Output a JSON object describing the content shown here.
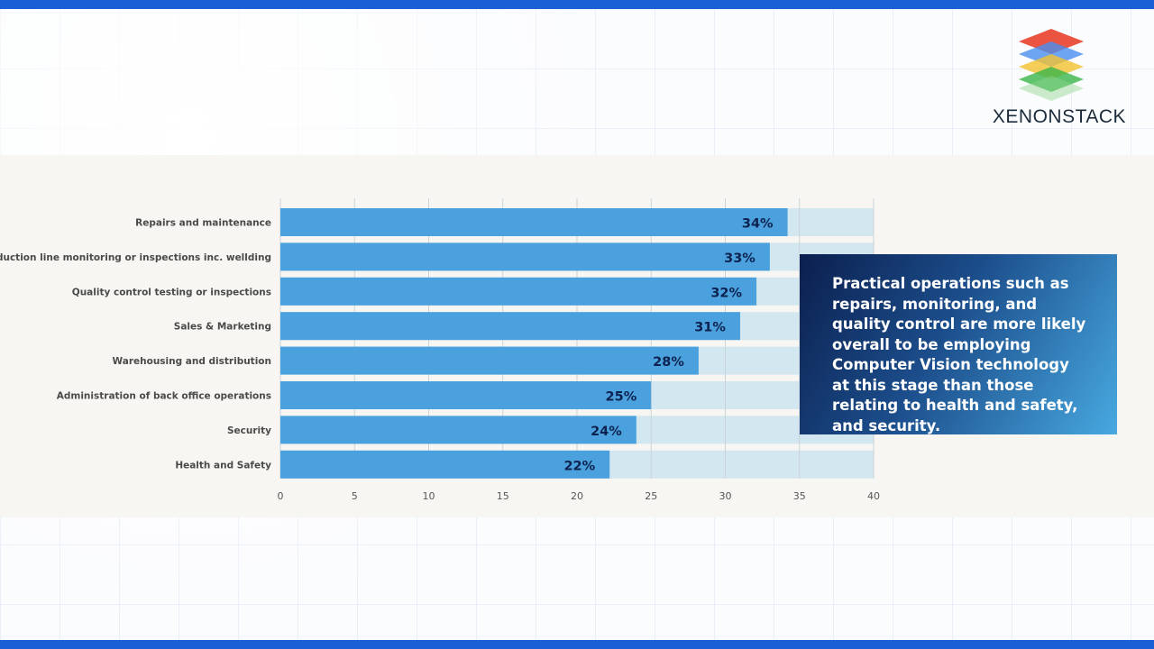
{
  "brand": {
    "name": "XENONSTACK",
    "logo_icon": "stacked-layers-icon",
    "layer_colors": [
      "#e8412c",
      "#4a8ff0",
      "#f2c230",
      "#3ab54a"
    ]
  },
  "callout": {
    "text": "Practical operations such as repairs, monitoring, and quality control are more likely overall to be employing Computer Vision technology at this stage than those relating to health and safety, and security."
  },
  "colors": {
    "bar": "#4aa1dd",
    "track": "#d2e7ef",
    "label_text": "#4a4a4a",
    "value_text": "#0e2250",
    "accent_bar": "#1a5fd6"
  },
  "chart_data": {
    "type": "bar",
    "orientation": "horizontal",
    "categories": [
      "Repairs and maintenance",
      "Production line monitoring or inspections inc. wellding",
      "Quality control testing or inspections",
      "Sales & Marketing",
      "Warehousing and distribution",
      "Administration of back office operations",
      "Security",
      "Health and Safety"
    ],
    "values": [
      34.2,
      33,
      32.1,
      31,
      28.2,
      25,
      24,
      22.2
    ],
    "value_labels": [
      "34%",
      "33%",
      "32%",
      "31%",
      "28%",
      "25%",
      "24%",
      "22%"
    ],
    "xlim": [
      0,
      40
    ],
    "xticks": [
      0,
      5,
      10,
      15,
      20,
      25,
      30,
      35,
      40
    ],
    "grid": true,
    "title": "",
    "xlabel": "",
    "ylabel": ""
  }
}
